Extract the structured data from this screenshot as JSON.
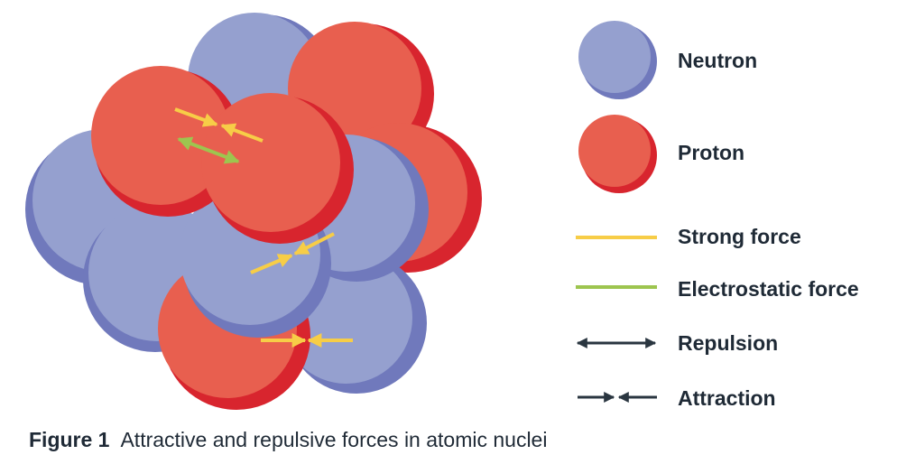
{
  "legend": {
    "neutron": "Neutron",
    "proton": "Proton",
    "strong_force": "Strong force",
    "electrostatic_force": "Electrostatic force",
    "repulsion": "Repulsion",
    "attraction": "Attraction"
  },
  "caption": {
    "figure_number": "Figure 1",
    "text": "Attractive and repulsive forces in atomic nuclei"
  },
  "colors": {
    "neutron": "#95a0cf",
    "neutron_shade": "#7079bc",
    "proton": "#e85f4f",
    "proton_shade": "#d8252e",
    "strong_force": "#f7cd47",
    "electrostatic_force": "#9dc54f",
    "arrow_dark": "#2a3640"
  }
}
